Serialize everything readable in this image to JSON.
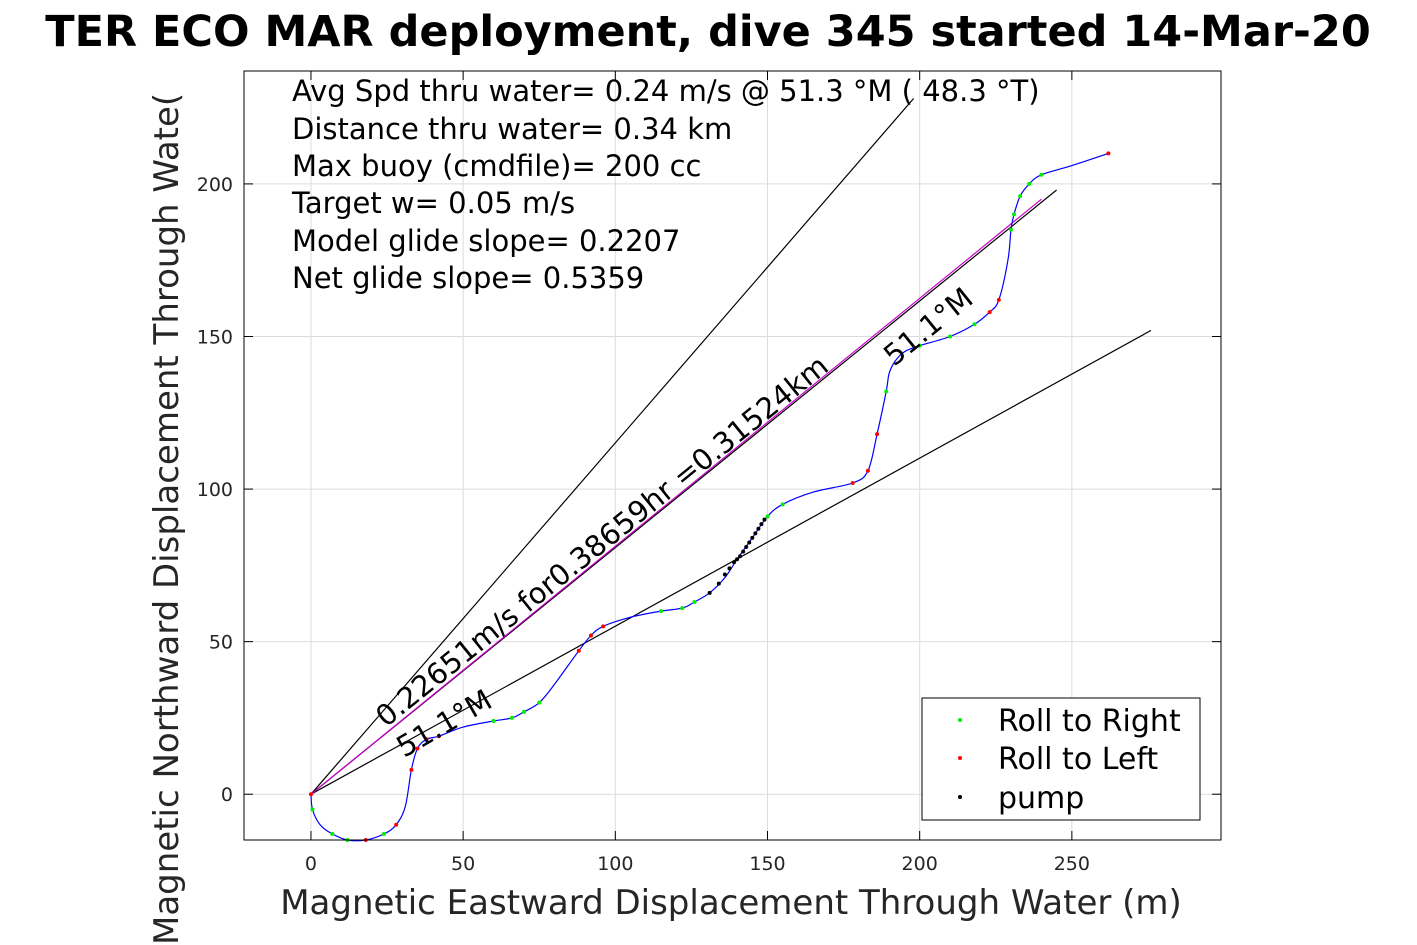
{
  "chart_data": {
    "type": "line",
    "title": "TER ECO MAR deployment, dive 345 started 14-Mar-20",
    "xlabel": "Magnetic Eastward Displacement Through Water (m)",
    "ylabel": "Magnetic Northward Displacement Through Wate(",
    "xlim": [
      -22,
      299
    ],
    "ylim": [
      -15,
      237
    ],
    "x_ticks": [
      0,
      50,
      100,
      150,
      200,
      250
    ],
    "y_ticks": [
      0,
      50,
      100,
      150,
      200
    ],
    "grid": true,
    "stats_text": [
      "Avg Spd thru water=  0.24 m/s @  51.3 °M ( 48.3 °T)",
      "Distance thru water=  0.34 km",
      "Max buoy (cmdfile)= 200 cc",
      "Target w= 0.05 m/s",
      "Model glide slope= 0.2207",
      "Net glide slope= 0.5359"
    ],
    "annotations": {
      "speed_text": "0.22651m/s for0.38659hr =0.31524km",
      "heading_lower": "51.1°M",
      "heading_upper": "51.1°M"
    },
    "reference_lines": [
      {
        "name": "heading-bound-upper",
        "color": "#000000",
        "x": [
          0,
          198
        ],
        "y": [
          0,
          228
        ]
      },
      {
        "name": "heading-bound-lower",
        "color": "#000000",
        "x": [
          0,
          276
        ],
        "y": [
          0,
          152
        ]
      },
      {
        "name": "net-heading",
        "color": "#000000",
        "x": [
          0,
          245
        ],
        "y": [
          0,
          198
        ]
      },
      {
        "name": "glide-path",
        "color": "#cc00cc",
        "x": [
          0,
          240
        ],
        "y": [
          0,
          195
        ]
      }
    ],
    "track": {
      "color": "#0000ff",
      "x": [
        0,
        0.5,
        3,
        7,
        12,
        18,
        24,
        28,
        31,
        33,
        35,
        38,
        42,
        50,
        60,
        66,
        70,
        75,
        80,
        88,
        92,
        96,
        105,
        115,
        122,
        126,
        131,
        136,
        140,
        145,
        150,
        155,
        165,
        178,
        183,
        186,
        189,
        190,
        192,
        195,
        200,
        210,
        218,
        223,
        226,
        229,
        230,
        231,
        233,
        236,
        240,
        250,
        262
      ],
      "y": [
        0,
        -5,
        -10,
        -13,
        -15,
        -15,
        -13,
        -10,
        -4,
        8,
        15,
        18,
        19,
        22,
        24,
        25,
        27,
        30,
        36,
        47,
        52,
        55,
        58,
        60,
        61,
        63,
        66,
        71,
        77,
        84,
        91,
        95,
        99,
        102,
        106,
        118,
        132,
        138,
        142,
        145,
        147,
        150,
        154,
        158,
        162,
        175,
        185,
        190,
        196,
        200,
        203,
        206,
        210
      ]
    },
    "series": [
      {
        "name": "Roll to Right",
        "color": "#00ee00",
        "x": [
          0.5,
          7,
          12,
          24,
          60,
          66,
          70,
          75,
          92,
          115,
          122,
          126,
          150,
          155,
          189,
          200,
          210,
          218,
          230,
          231,
          233,
          236,
          240
        ],
        "y": [
          -5,
          -13,
          -15,
          -13,
          24,
          25,
          27,
          30,
          52,
          60,
          61,
          63,
          91,
          95,
          132,
          147,
          150,
          154,
          185,
          190,
          196,
          200,
          203
        ]
      },
      {
        "name": "Roll to Left",
        "color": "#ff0000",
        "x": [
          0,
          18,
          28,
          33,
          35,
          38,
          42,
          88,
          92,
          96,
          178,
          183,
          186,
          223,
          226,
          262
        ],
        "y": [
          0,
          -15,
          -10,
          8,
          15,
          18,
          19,
          47,
          52,
          55,
          102,
          106,
          118,
          158,
          162,
          210
        ]
      },
      {
        "name": "pump",
        "color": "#000000",
        "x": [
          131,
          134,
          136,
          137.5,
          139,
          140,
          141,
          142,
          143,
          144,
          145,
          146,
          147,
          148,
          149
        ],
        "y": [
          66,
          69,
          72,
          74,
          76,
          77,
          78,
          79.5,
          81,
          82.5,
          84,
          85.5,
          87,
          88.5,
          90
        ]
      }
    ],
    "legend_position": "bottom-right"
  }
}
